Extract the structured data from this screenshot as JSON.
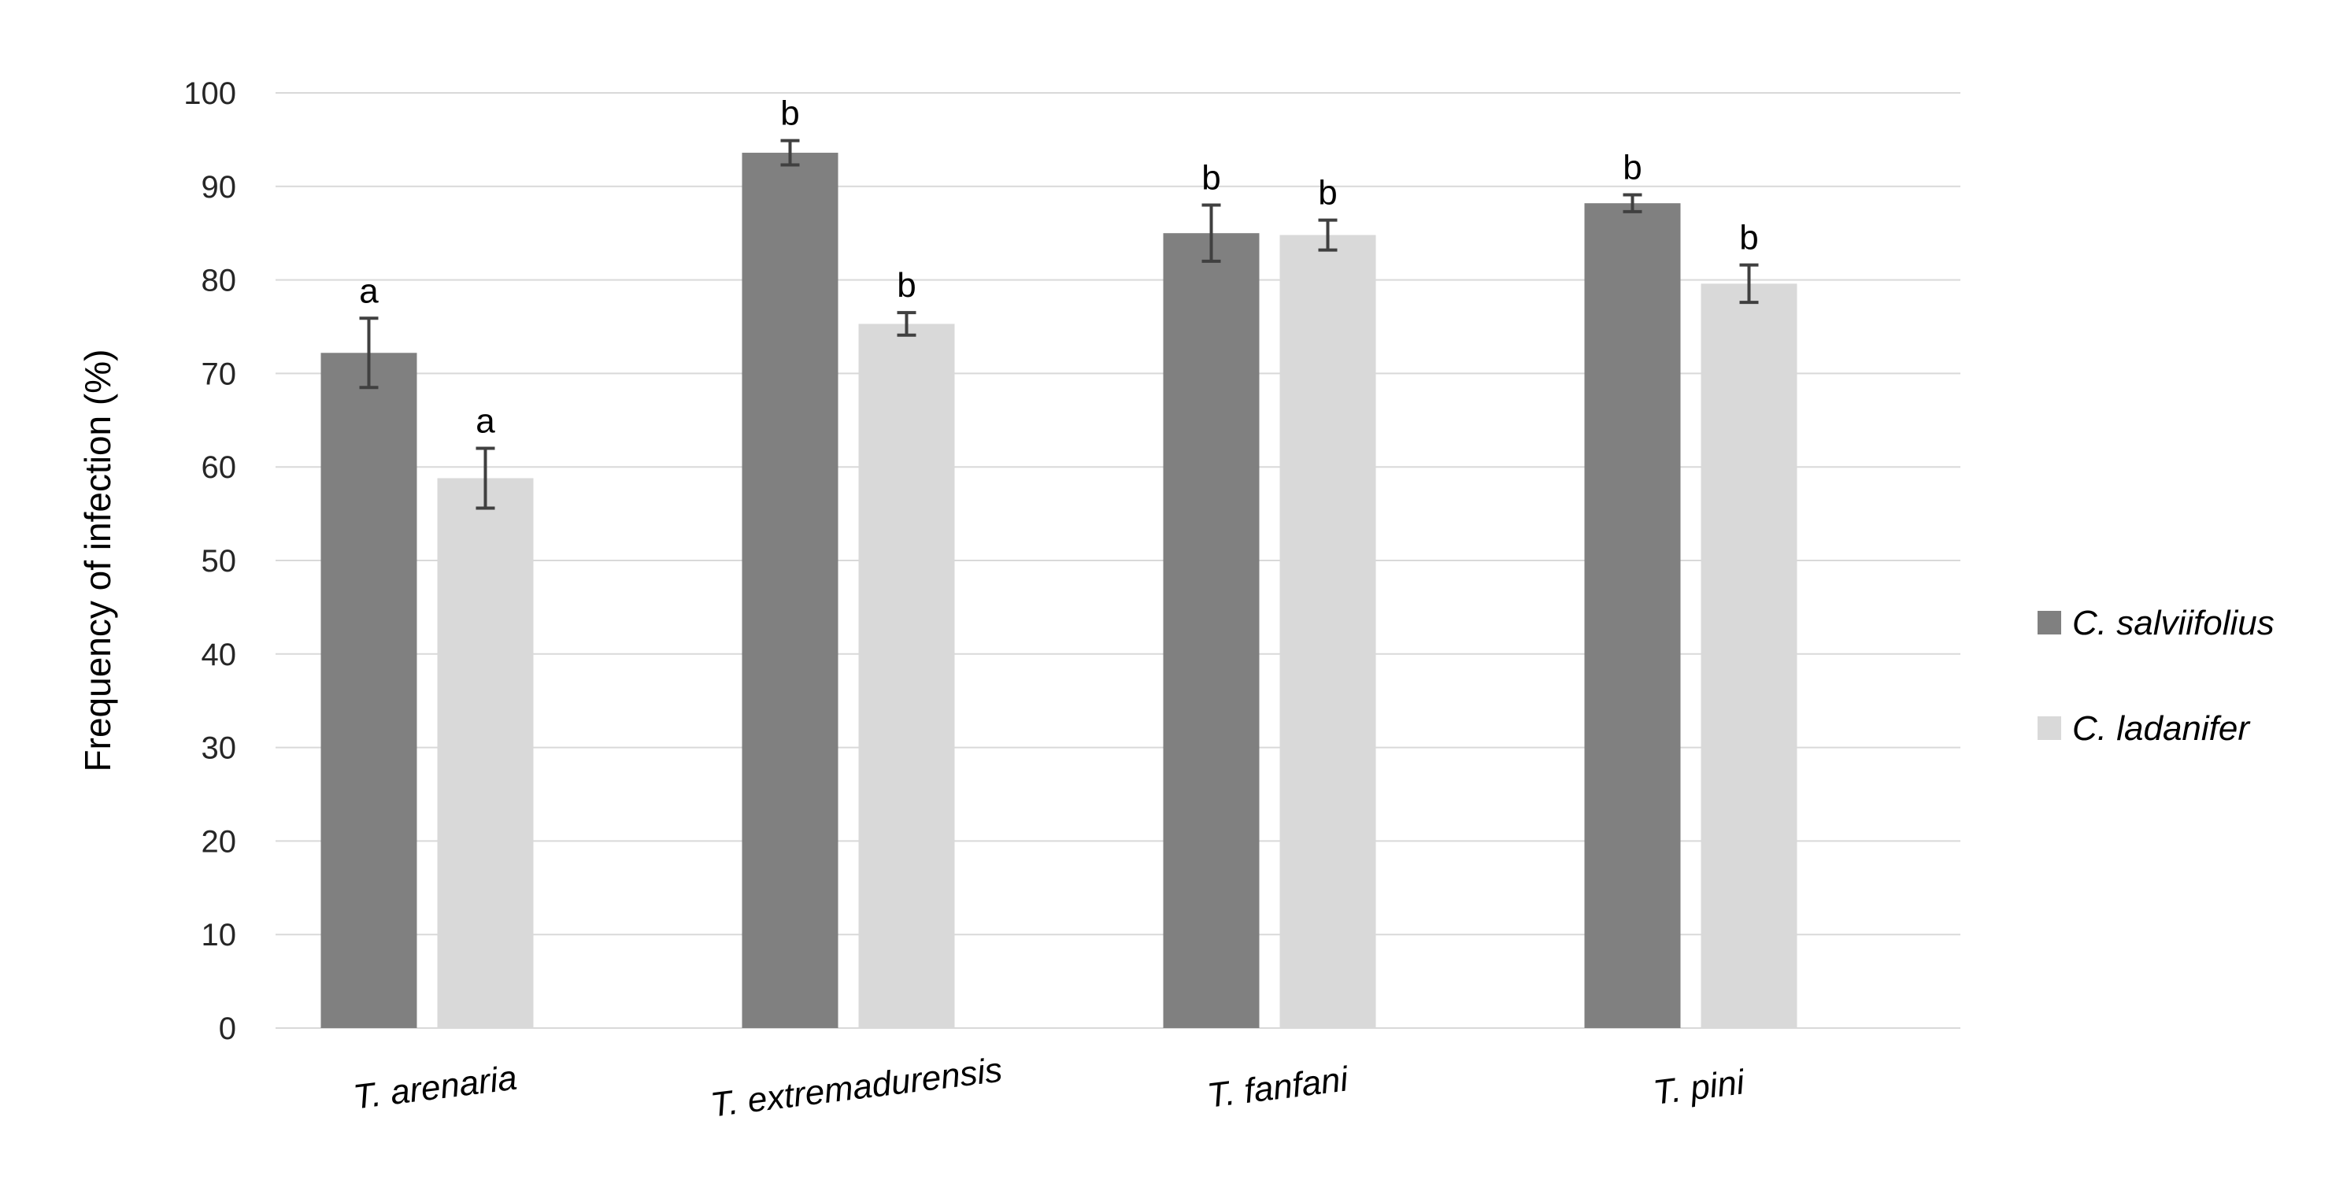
{
  "chart_data": {
    "type": "bar",
    "categories": [
      "T. arenaria",
      "T. extremadurensis",
      "T. fanfani",
      "T. pini"
    ],
    "series": [
      {
        "name": "C. salviifolius",
        "color": "#808080",
        "values": [
          72.2,
          93.6,
          85.0,
          88.2
        ],
        "errors": [
          3.7,
          1.3,
          3.0,
          0.9
        ],
        "labels": [
          "a",
          "b",
          "b",
          "b"
        ]
      },
      {
        "name": "C. ladanifer",
        "color": "#d9d9d9",
        "values": [
          58.8,
          75.3,
          84.8,
          79.6
        ],
        "errors": [
          3.2,
          1.2,
          1.6,
          2.0
        ],
        "labels": [
          "a",
          "b",
          "b",
          "b"
        ]
      }
    ],
    "title": "",
    "xlabel": "",
    "ylabel": "Frequency  of infection (%)",
    "ylim": [
      0,
      100
    ],
    "yticks": [
      0,
      10,
      20,
      30,
      40,
      50,
      60,
      70,
      80,
      90,
      100
    ],
    "grid": true,
    "legend_position": "right"
  }
}
